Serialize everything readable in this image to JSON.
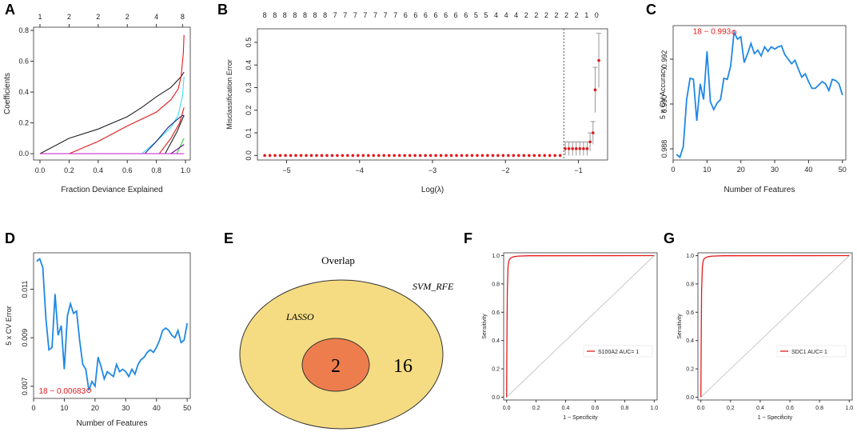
{
  "panels": {
    "a": {
      "letter": "A"
    },
    "b": {
      "letter": "B"
    },
    "c": {
      "letter": "C"
    },
    "d": {
      "letter": "D"
    },
    "e": {
      "letter": "E"
    },
    "f": {
      "letter": "F"
    },
    "g": {
      "letter": "G"
    }
  },
  "colors": {
    "blue": "#1e88e5",
    "red": "#e41a1c",
    "black": "#222222",
    "cyan": "#40e0f0",
    "navy": "#1a237e",
    "magenta": "#cc33cc",
    "green": "#33cc33",
    "purple": "#660099",
    "venn_outer": "#f5dc82",
    "venn_inner": "#ee7d4d",
    "grey": "#999999"
  },
  "chart_data": [
    {
      "panel": "A",
      "type": "line",
      "xlabel": "Fraction Deviance Explained",
      "ylabel": "Coefficients",
      "xlim": [
        0,
        1
      ],
      "ylim": [
        -0.02,
        0.8
      ],
      "xticks": [
        "0.0",
        "0.2",
        "0.4",
        "0.6",
        "0.8",
        "1.0"
      ],
      "yticks": [
        "0.0",
        "0.2",
        "0.4",
        "0.6",
        "0.8"
      ],
      "top_axis": [
        {
          "x": 0.0,
          "label": "1"
        },
        {
          "x": 0.2,
          "label": "2"
        },
        {
          "x": 0.4,
          "label": "2"
        },
        {
          "x": 0.6,
          "label": "2"
        },
        {
          "x": 0.8,
          "label": "4"
        },
        {
          "x": 0.98,
          "label": "8"
        }
      ],
      "series": [
        {
          "name": "black",
          "x": [
            0,
            0.2,
            0.4,
            0.6,
            0.7,
            0.8,
            0.9,
            0.97,
            0.99
          ],
          "y": [
            0,
            0.1,
            0.16,
            0.24,
            0.3,
            0.37,
            0.43,
            0.5,
            0.53
          ]
        },
        {
          "name": "red",
          "x": [
            0.2,
            0.4,
            0.6,
            0.8,
            0.9,
            0.95,
            0.97,
            0.985,
            0.99
          ],
          "y": [
            0,
            0.08,
            0.18,
            0.27,
            0.35,
            0.42,
            0.5,
            0.65,
            0.77
          ]
        },
        {
          "name": "cyan",
          "x": [
            0.7,
            0.8,
            0.9,
            0.95,
            0.98,
            0.99
          ],
          "y": [
            0,
            0.08,
            0.17,
            0.25,
            0.38,
            0.5
          ]
        },
        {
          "name": "navy",
          "x": [
            0.72,
            0.8,
            0.88,
            0.94,
            0.98,
            0.99
          ],
          "y": [
            0,
            0.08,
            0.17,
            0.22,
            0.25,
            0.24
          ]
        },
        {
          "name": "red2",
          "x": [
            0.82,
            0.9,
            0.96,
            0.99
          ],
          "y": [
            0,
            0.1,
            0.2,
            0.3
          ]
        },
        {
          "name": "black2",
          "x": [
            0.86,
            0.94,
            0.99
          ],
          "y": [
            0,
            0.14,
            0.25
          ]
        },
        {
          "name": "green",
          "x": [
            0.94,
            0.99
          ],
          "y": [
            0,
            0.1
          ]
        },
        {
          "name": "magenta",
          "x": [
            0,
            0.99
          ],
          "y": [
            0,
            0
          ]
        },
        {
          "name": "purple",
          "x": [
            0.9,
            0.99
          ],
          "y": [
            0,
            0.06
          ]
        }
      ]
    },
    {
      "panel": "B",
      "type": "scatter",
      "xlabel": "Log(λ)",
      "ylabel": "Misclassification Error",
      "xlim": [
        -5.4,
        -0.6
      ],
      "ylim": [
        -0.02,
        0.56
      ],
      "xticks": [
        "−5",
        "−4",
        "−3",
        "−2",
        "−1"
      ],
      "xtick_values": [
        -5,
        -4,
        -3,
        -2,
        -1
      ],
      "yticks": [
        "0.0",
        "0.1",
        "0.2",
        "0.3",
        "0.4",
        "0.5"
      ],
      "top_labels": [
        "8",
        "8",
        "8",
        "8",
        "8",
        "8",
        "8",
        "7",
        "7",
        "7",
        "7",
        "7",
        "7",
        "7",
        "6",
        "6",
        "6",
        "6",
        "6",
        "6",
        "6",
        "5",
        "5",
        "4",
        "4",
        "4",
        "2",
        "2",
        "2",
        "2",
        "2",
        "2",
        "1",
        "0"
      ],
      "top_x_start": -5.3,
      "top_x_end": -0.75,
      "dots_x_start": -5.3,
      "dots_x_end": -1.25,
      "dots_count": 58,
      "extra_points": [
        {
          "x": -1.18,
          "y": 0.03,
          "err": 0.03
        },
        {
          "x": -1.13,
          "y": 0.03,
          "err": 0.03
        },
        {
          "x": -1.08,
          "y": 0.03,
          "err": 0.03
        },
        {
          "x": -1.03,
          "y": 0.03,
          "err": 0.03
        },
        {
          "x": -0.98,
          "y": 0.03,
          "err": 0.03
        },
        {
          "x": -0.93,
          "y": 0.03,
          "err": 0.03
        },
        {
          "x": -0.88,
          "y": 0.03,
          "err": 0.03
        },
        {
          "x": -0.84,
          "y": 0.06,
          "err": 0.04
        },
        {
          "x": -0.8,
          "y": 0.1,
          "err": 0.05
        },
        {
          "x": -0.77,
          "y": 0.29,
          "err": 0.1
        },
        {
          "x": -0.72,
          "y": 0.42,
          "err": 0.12
        }
      ],
      "vline": -1.2
    },
    {
      "panel": "C",
      "type": "line",
      "xlabel": "Number of Features",
      "ylabel": "5 x CV Accuracy",
      "annotation": "18 − 0.993",
      "xlim": [
        0,
        51
      ],
      "ylim": [
        0.9875,
        0.9935
      ],
      "xticks": [
        "0",
        "10",
        "20",
        "30",
        "40",
        "50"
      ],
      "yticks": [
        "0.988",
        "0.990",
        "0.992"
      ],
      "ytick_values": [
        0.988,
        0.99,
        0.992
      ],
      "x": [
        1,
        2,
        3,
        4,
        5,
        6,
        7,
        8,
        9,
        10,
        11,
        12,
        13,
        14,
        15,
        16,
        17,
        18,
        19,
        20,
        21,
        22,
        23,
        24,
        25,
        26,
        27,
        28,
        29,
        30,
        31,
        32,
        33,
        34,
        35,
        36,
        37,
        38,
        39,
        40,
        41,
        42,
        43,
        44,
        45,
        46,
        47,
        48,
        49,
        50
      ],
      "values": [
        0.98775,
        0.98762,
        0.9881,
        0.9902,
        0.99115,
        0.9911,
        0.98925,
        0.9909,
        0.9902,
        0.99235,
        0.9901,
        0.98975,
        0.99005,
        0.9902,
        0.99115,
        0.9911,
        0.9917,
        0.9932,
        0.9929,
        0.993,
        0.99185,
        0.99225,
        0.9927,
        0.99225,
        0.9924,
        0.99215,
        0.99255,
        0.99235,
        0.99255,
        0.99245,
        0.99255,
        0.9926,
        0.9922,
        0.992,
        0.9918,
        0.99195,
        0.99155,
        0.9912,
        0.99135,
        0.991,
        0.9907,
        0.9907,
        0.99085,
        0.991,
        0.9909,
        0.9906,
        0.9911,
        0.99105,
        0.9909,
        0.9904
      ]
    },
    {
      "panel": "D",
      "type": "line",
      "xlabel": "Number of Features",
      "ylabel": "5 x CV Error",
      "annotation": "18 − 0.00683",
      "xlim": [
        0,
        51
      ],
      "ylim": [
        0.0065,
        0.0125
      ],
      "xticks": [
        "0",
        "10",
        "20",
        "30",
        "40",
        "50"
      ],
      "yticks": [
        "0.007",
        "0.009",
        "0.011"
      ],
      "ytick_values": [
        0.007,
        0.009,
        0.011
      ],
      "x": [
        1,
        2,
        3,
        4,
        5,
        6,
        7,
        8,
        9,
        10,
        11,
        12,
        13,
        14,
        15,
        16,
        17,
        18,
        19,
        20,
        21,
        22,
        23,
        24,
        25,
        26,
        27,
        28,
        29,
        30,
        31,
        32,
        33,
        34,
        35,
        36,
        37,
        38,
        39,
        40,
        41,
        42,
        43,
        44,
        45,
        46,
        47,
        48,
        49,
        50
      ],
      "values": [
        0.01215,
        0.01225,
        0.0119,
        0.0098,
        0.0085,
        0.0086,
        0.0108,
        0.0091,
        0.0095,
        0.0077,
        0.0099,
        0.0104,
        0.01,
        0.0101,
        0.0089,
        0.0079,
        0.0077,
        0.00683,
        0.0072,
        0.007,
        0.0082,
        0.0078,
        0.0073,
        0.0076,
        0.0075,
        0.0074,
        0.0079,
        0.0076,
        0.0077,
        0.0076,
        0.0074,
        0.0077,
        0.0075,
        0.0079,
        0.0081,
        0.0082,
        0.0084,
        0.0085,
        0.0084,
        0.0086,
        0.0089,
        0.0093,
        0.0094,
        0.0093,
        0.0091,
        0.009,
        0.0093,
        0.0088,
        0.0089,
        0.0096
      ]
    },
    {
      "panel": "E",
      "type": "venn",
      "title": "Overlap",
      "outer_label": "SVM_RFE",
      "inner_label": "LASSO",
      "inner_count": "2",
      "outer_count": "16"
    },
    {
      "panel": "F",
      "type": "line",
      "xlabel": "1 − Specificity",
      "ylabel": "Sensitivity",
      "legend": "S100A2 AUC= 1",
      "xticks": [
        "0.0",
        "0.2",
        "0.4",
        "0.6",
        "0.8",
        "1.0"
      ],
      "yticks": [
        "0.0",
        "0.2",
        "0.4",
        "0.6",
        "0.8",
        "1.0"
      ],
      "xlim": [
        0,
        1
      ],
      "ylim": [
        0,
        1
      ],
      "roc_x": [
        0,
        0.002,
        0.005,
        0.01,
        0.015,
        0.02,
        0.03,
        0.05,
        0.08,
        0.15,
        1
      ],
      "roc_y": [
        0,
        0.4,
        0.75,
        0.92,
        0.96,
        0.975,
        0.985,
        0.993,
        0.997,
        0.999,
        1
      ]
    },
    {
      "panel": "G",
      "type": "line",
      "xlabel": "1 − Specificity",
      "ylabel": "Sensitivity",
      "legend": "SDC1 AUC= 1",
      "xticks": [
        "0.0",
        "0.2",
        "0.4",
        "0.6",
        "0.8",
        "1.0"
      ],
      "yticks": [
        "0.0",
        "0.2",
        "0.4",
        "0.6",
        "0.8",
        "1.0"
      ],
      "xlim": [
        0,
        1
      ],
      "ylim": [
        0,
        1
      ],
      "roc_x": [
        0,
        0.002,
        0.005,
        0.01,
        0.015,
        0.02,
        0.03,
        0.05,
        0.08,
        0.15,
        1
      ],
      "roc_y": [
        0,
        0.4,
        0.75,
        0.92,
        0.96,
        0.975,
        0.985,
        0.993,
        0.997,
        0.999,
        1
      ]
    }
  ]
}
